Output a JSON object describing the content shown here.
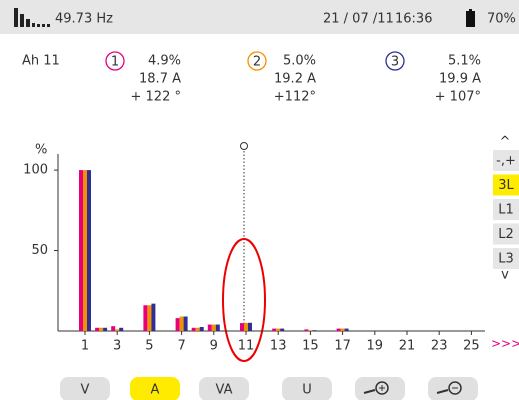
{
  "header": {
    "frequency": "49.73 Hz",
    "date": "21 / 07 /11",
    "time": "16:36",
    "battery": "70%"
  },
  "harmonic_label": "Ah 11",
  "readings": [
    {
      "percent": "4.9%",
      "current": "18.7 A",
      "angle": "+ 122 °"
    },
    {
      "percent": "5.0%",
      "current": "19.2 A",
      "angle": "+112°"
    },
    {
      "percent": "5.1%",
      "current": "19.9 A",
      "angle": "+ 107°"
    }
  ],
  "chart_data": {
    "type": "bar",
    "y_label": "%",
    "categories": [
      "1",
      null,
      "3",
      null,
      "5",
      null,
      "7",
      null,
      "9",
      null,
      "11",
      null,
      "13",
      null,
      "15",
      null,
      "17",
      null,
      "19",
      null,
      "21",
      null,
      "23",
      null,
      "25"
    ],
    "series": [
      {
        "name": "1",
        "color": "#e6007e",
        "values": [
          100,
          2,
          3,
          0,
          16,
          0,
          8,
          2,
          4,
          0,
          4.9,
          0,
          1.5,
          0,
          1,
          0,
          1.5,
          0,
          0,
          0,
          0,
          0,
          0,
          0,
          0
        ]
      },
      {
        "name": "2",
        "color": "#f39200",
        "values": [
          100,
          2,
          1,
          0,
          16,
          0,
          9,
          2,
          4,
          0,
          5.0,
          0,
          1.5,
          0,
          0.5,
          0,
          1.5,
          0,
          0,
          0,
          0,
          0,
          0,
          0,
          0
        ]
      },
      {
        "name": "3",
        "color": "#2e3192",
        "values": [
          100,
          2,
          2,
          0,
          17,
          0,
          9,
          2.5,
          4,
          0,
          5.1,
          0,
          1.5,
          0,
          0.5,
          0,
          1.5,
          0,
          0,
          0,
          0,
          0,
          0,
          0,
          0
        ]
      }
    ],
    "ylim": [
      0,
      110
    ],
    "yticks": [
      50,
      100
    ]
  },
  "side_buttons": [
    "-,+",
    "3L",
    "L1",
    "L2",
    "L3"
  ],
  "bottom_buttons": [
    "V",
    "A",
    "VA",
    "U"
  ]
}
